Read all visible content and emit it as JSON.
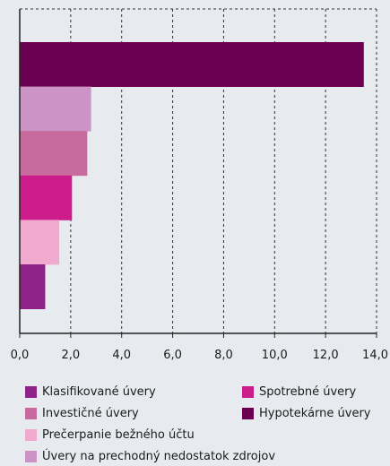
{
  "chart_data": {
    "type": "bar",
    "orientation": "horizontal",
    "title": "",
    "xlabel": "",
    "ylabel": "",
    "xlim": [
      0,
      14
    ],
    "x_ticks": [
      "0,0",
      "2,0",
      "4,0",
      "6,0",
      "8,0",
      "10,0",
      "12,0",
      "14,0"
    ],
    "grid": "vertical dashed",
    "legend_placement": "bottom",
    "series": [
      {
        "name": "Hypotekárne úvery",
        "value": 13.5,
        "color": "#6b0052"
      },
      {
        "name": "Úvery na prechodný nedostatok zdrojov",
        "value": 2.8,
        "color": "#cc94c6"
      },
      {
        "name": "Investičné úvery",
        "value": 2.65,
        "color": "#c96a9f"
      },
      {
        "name": "Spotrebné úvery",
        "value": 2.05,
        "color": "#cc1b8b"
      },
      {
        "name": "Prečerpanie bežného účtu",
        "value": 1.55,
        "color": "#f2a9cf"
      },
      {
        "name": "Klasifikované úvery",
        "value": 1.0,
        "color": "#8e2288"
      }
    ]
  },
  "legend": [
    {
      "label": "Klasifikované úvery",
      "color": "#8e2288"
    },
    {
      "label": "Spotrebné úvery",
      "color": "#cc1b8b"
    },
    {
      "label": "Investičné úvery",
      "color": "#c96a9f"
    },
    {
      "label": "Hypotekárne úvery",
      "color": "#6b0052"
    },
    {
      "label": "Prečerpanie bežného účtu",
      "color": "#f2a9cf"
    },
    {
      "label": "Úvery na prechodný nedostatok zdrojov",
      "color": "#cc94c6"
    }
  ]
}
